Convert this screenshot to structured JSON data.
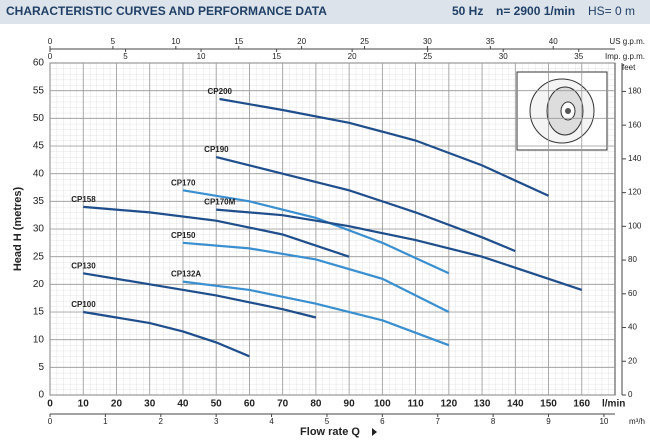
{
  "chart_data": {
    "type": "line",
    "title": "CHARACTERISTIC CURVES AND PERFORMANCE DATA",
    "frequency": "50 Hz",
    "speed": "n= 2900 1/min",
    "suction": "HS= 0 m",
    "xlabel": "Flow rate Q",
    "xunit": "l/min",
    "ylabel": "Head H (metres)",
    "xlim": [
      0,
      170
    ],
    "xticks": [
      0,
      10,
      20,
      30,
      40,
      50,
      60,
      70,
      80,
      90,
      100,
      110,
      120,
      130,
      140,
      150,
      160
    ],
    "ylim": [
      0,
      60
    ],
    "yticks": [
      0,
      5,
      10,
      15,
      20,
      25,
      30,
      35,
      40,
      45,
      50,
      55,
      60
    ],
    "grid": true,
    "extra_x_axes": [
      {
        "label": "US g.p.m.",
        "lim": [
          0,
          44.91
        ],
        "ticks": [
          0,
          5,
          10,
          15,
          20,
          25,
          30,
          35,
          40
        ]
      },
      {
        "label": "Imp. g.p.m.",
        "lim": [
          0,
          37.4
        ],
        "ticks": [
          0,
          5,
          10,
          15,
          20,
          25,
          30,
          35
        ]
      },
      {
        "label": "m³/h",
        "lim": [
          0,
          10.2
        ],
        "ticks": [
          0,
          1,
          2,
          3,
          4,
          5,
          6,
          7,
          8,
          9,
          10
        ]
      }
    ],
    "y2": {
      "label": "feet",
      "lim": [
        0,
        196.85
      ],
      "ticks": [
        0,
        20,
        40,
        60,
        80,
        100,
        120,
        140,
        160,
        180
      ]
    },
    "series": [
      {
        "name": "CP200",
        "color": "#1f4e8c",
        "x": [
          51,
          70,
          90,
          110,
          130,
          150
        ],
        "values": [
          53.5,
          51.5,
          49.2,
          46,
          41.5,
          36
        ]
      },
      {
        "name": "CP190",
        "color": "#1f4e8c",
        "x": [
          50,
          70,
          90,
          110,
          130,
          140
        ],
        "values": [
          43,
          40,
          37,
          33,
          28.5,
          26
        ]
      },
      {
        "name": "CP170",
        "color": "#3a8fd0",
        "x": [
          40,
          60,
          80,
          100,
          120
        ],
        "values": [
          37,
          35,
          32,
          27.5,
          22
        ]
      },
      {
        "name": "CP170M",
        "color": "#1f4e8c",
        "x": [
          50,
          70,
          90,
          110,
          130,
          150,
          160
        ],
        "values": [
          33.5,
          32.5,
          30.5,
          28,
          25,
          21,
          19
        ]
      },
      {
        "name": "CP158",
        "color": "#1f4e8c",
        "x": [
          10,
          30,
          50,
          70,
          90
        ],
        "values": [
          34,
          33,
          31.5,
          29,
          25
        ]
      },
      {
        "name": "CP150",
        "color": "#3a8fd0",
        "x": [
          40,
          60,
          80,
          100,
          120
        ],
        "values": [
          27.5,
          26.5,
          24.5,
          21,
          15
        ]
      },
      {
        "name": "CP132A",
        "color": "#3a8fd0",
        "x": [
          40,
          60,
          80,
          100,
          120
        ],
        "values": [
          20.5,
          19,
          16.5,
          13.5,
          9
        ]
      },
      {
        "name": "CP130",
        "color": "#1f4e8c",
        "x": [
          10,
          30,
          50,
          70,
          80
        ],
        "values": [
          22,
          20,
          18,
          15.5,
          14
        ]
      },
      {
        "name": "CP100",
        "color": "#1f4e8c",
        "x": [
          10,
          20,
          30,
          40,
          50,
          60
        ],
        "values": [
          15,
          14,
          13,
          11.5,
          9.5,
          7
        ]
      }
    ]
  }
}
